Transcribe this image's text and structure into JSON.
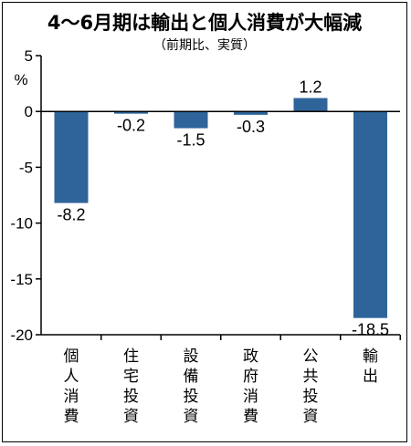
{
  "header": {
    "title": "4〜6月期は輸出と個人消費が大幅減",
    "subtitle": "（前期比、実質）"
  },
  "chart_data": {
    "type": "bar",
    "title": "4〜6月期は輸出と個人消費が大幅減",
    "subtitle": "（前期比、実質）",
    "ylabel": "%",
    "xlabel": "",
    "categories": [
      "個人消費",
      "住宅投資",
      "設備投資",
      "政府消費",
      "公共投資",
      "輸出"
    ],
    "values": [
      -8.2,
      -0.2,
      -1.5,
      -0.3,
      1.2,
      -18.5
    ],
    "value_labels": [
      "-8.2",
      "-0.2",
      "-1.5",
      "-0.3",
      "1.2",
      "-18.5"
    ],
    "ylim": [
      -20,
      5
    ],
    "yticks": [
      5,
      0,
      -5,
      -10,
      -15,
      -20
    ],
    "ytick_labels": [
      "5",
      "0",
      "-5",
      "-10",
      "-15",
      "-20"
    ],
    "grid": false,
    "legend": "none",
    "bar_color": "#2e6499"
  }
}
